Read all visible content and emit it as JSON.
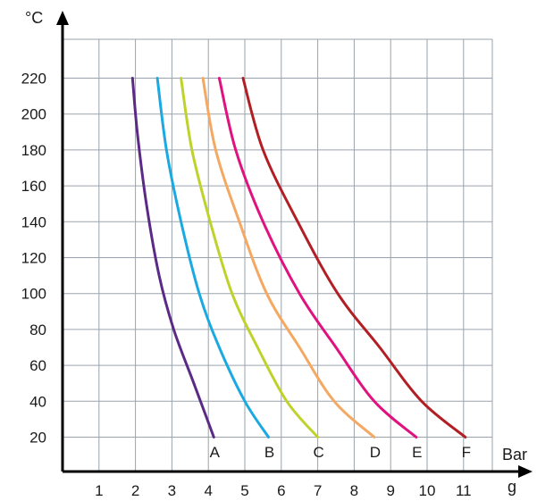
{
  "chart_data": {
    "type": "line",
    "y_unit": "°C",
    "x_unit_line1": "Bar",
    "x_unit_line2": "g",
    "xlim": [
      0,
      11.5
    ],
    "ylim": [
      10,
      220
    ],
    "x_ticks": [
      1,
      2,
      3,
      4,
      5,
      6,
      7,
      8,
      9,
      10,
      11
    ],
    "y_ticks": [
      20,
      40,
      60,
      80,
      100,
      120,
      140,
      160,
      180,
      200,
      220
    ],
    "grid": true,
    "series": [
      {
        "name": "A",
        "color": "#5b2a86",
        "x": [
          1.92,
          2.05,
          2.3,
          2.65,
          3.05,
          3.6,
          4.15
        ],
        "y": [
          220,
          190,
          150,
          110,
          80,
          50,
          20
        ]
      },
      {
        "name": "B",
        "color": "#1ba9e1",
        "x": [
          2.6,
          2.85,
          3.25,
          3.75,
          4.3,
          5.0,
          5.65
        ],
        "y": [
          220,
          180,
          140,
          100,
          70,
          40,
          20
        ]
      },
      {
        "name": "C",
        "color": "#bfd22b",
        "x": [
          3.25,
          3.55,
          4.05,
          4.65,
          5.35,
          6.15,
          7.0
        ],
        "y": [
          220,
          180,
          140,
          100,
          70,
          40,
          20
        ]
      },
      {
        "name": "D",
        "color": "#f4a862",
        "x": [
          3.85,
          4.2,
          4.85,
          5.6,
          6.5,
          7.45,
          8.55
        ],
        "y": [
          220,
          180,
          140,
          100,
          70,
          40,
          20
        ]
      },
      {
        "name": "E",
        "color": "#e0127f",
        "x": [
          4.3,
          4.75,
          5.5,
          6.5,
          7.5,
          8.55,
          9.7
        ],
        "y": [
          220,
          180,
          140,
          100,
          70,
          40,
          20
        ]
      },
      {
        "name": "F",
        "color": "#b11f24",
        "x": [
          4.95,
          5.5,
          6.45,
          7.55,
          8.7,
          9.85,
          11.05
        ],
        "y": [
          220,
          180,
          140,
          100,
          70,
          40,
          20
        ]
      }
    ]
  }
}
